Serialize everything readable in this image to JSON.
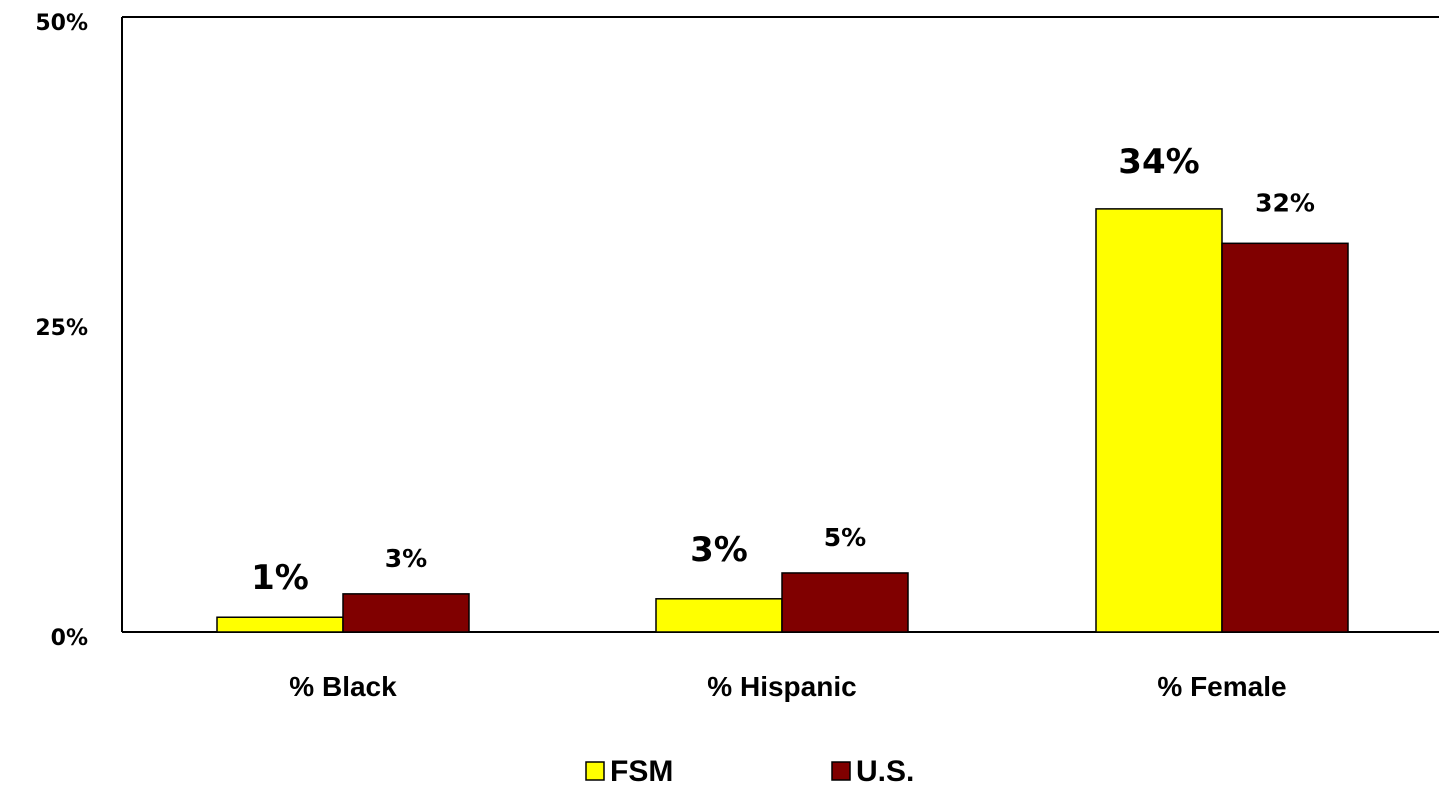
{
  "chart_data": {
    "type": "bar",
    "title": "",
    "xlabel": "",
    "ylabel": "",
    "ylim": [
      0,
      50
    ],
    "y_ticks": [
      "0%",
      "25%",
      "50%"
    ],
    "categories": [
      "% Black",
      "% Hispanic",
      "% Female"
    ],
    "series": [
      {
        "name": "FSM",
        "color": "#ffff00",
        "values": [
          1.2,
          2.7,
          34.4
        ],
        "labels": [
          "1%",
          "3%",
          "34%"
        ]
      },
      {
        "name": "U.S.",
        "color": "#800000",
        "values": [
          3.1,
          4.8,
          31.6
        ],
        "labels": [
          "3%",
          "5%",
          "32%"
        ]
      }
    ],
    "grid": false,
    "legend": "bottom"
  }
}
